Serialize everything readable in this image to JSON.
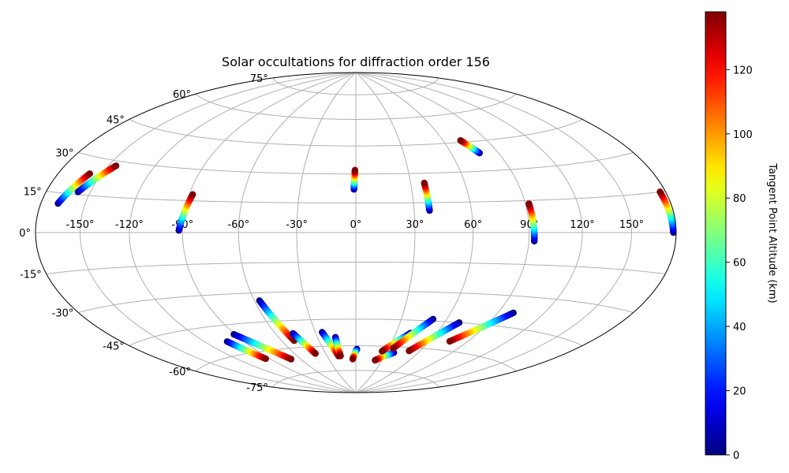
{
  "chart_data": {
    "type": "scatter",
    "projection": "hammer",
    "title": "Solar occultations for diffraction order 156",
    "grid": true,
    "longitude_ticks": [
      "-150°",
      "-120°",
      "-90°",
      "-60°",
      "-30°",
      "0°",
      "30°",
      "60°",
      "90°",
      "120°",
      "150°"
    ],
    "longitude_tick_values": [
      -150,
      -120,
      -90,
      -60,
      -30,
      0,
      30,
      60,
      90,
      120,
      150
    ],
    "latitude_ticks": [
      "75°",
      "60°",
      "45°",
      "30°",
      "15°",
      "0°",
      "-15°",
      "-30°",
      "-45°",
      "-60°",
      "-75°"
    ],
    "latitude_tick_values": [
      75,
      60,
      45,
      30,
      15,
      0,
      -15,
      -30,
      -45,
      -60,
      -75
    ],
    "colorbar": {
      "label": "Tangent Point Altitude (km)",
      "range": [
        0,
        138
      ],
      "colormap": "jet",
      "ticks": [
        "0",
        "20",
        "40",
        "60",
        "80",
        "100",
        "120"
      ],
      "tick_values": [
        0,
        20,
        40,
        60,
        80,
        100,
        120
      ]
    },
    "xlim": [
      -180,
      180
    ],
    "ylim": [
      -90,
      90
    ],
    "tracks": [
      {
        "start": [
          -168.0,
          11.0
        ],
        "end": [
          -158.0,
          23.5
        ]
      },
      {
        "start": [
          -158.0,
          16.0
        ],
        "end": [
          -145.0,
          28.0
        ]
      },
      {
        "start": [
          -92.0,
          1.0
        ],
        "end": [
          -88.0,
          18.0
        ]
      },
      {
        "start": [
          -1.0,
          22.0
        ],
        "end": [
          -0.5,
          32.0
        ]
      },
      {
        "start": [
          38.0,
          11.0
        ],
        "end": [
          37.5,
          25.0
        ]
      },
      {
        "start": [
          78.0,
          39.0
        ],
        "end": [
          72.0,
          46.0
        ]
      },
      {
        "start": [
          93.0,
          -4.0
        ],
        "end": [
          92.0,
          13.5
        ]
      },
      {
        "start": [
          178.0,
          0.0
        ],
        "end": [
          176.0,
          15.0
        ]
      },
      {
        "start": [
          -103.0,
          -53.0
        ],
        "end": [
          -94.0,
          -64.0
        ]
      },
      {
        "start": [
          -91.0,
          -50.0
        ],
        "end": [
          -70.0,
          -66.0
        ]
      },
      {
        "start": [
          -57.0,
          -34.0
        ],
        "end": [
          -50.0,
          -56.0
        ]
      },
      {
        "start": [
          -47.0,
          -52.0
        ],
        "end": [
          -40.0,
          -64.0
        ]
      },
      {
        "start": [
          -25.0,
          -52.0
        ],
        "end": [
          -18.0,
          -66.0
        ]
      },
      {
        "start": [
          -16.0,
          -55.0
        ],
        "end": [
          -16.0,
          -66.0
        ]
      },
      {
        "start": [
          1.0,
          -62.0
        ],
        "end": [
          -3.5,
          -68.0
        ]
      },
      {
        "start": [
          37.0,
          -63.5
        ],
        "end": [
          22.0,
          -68.5
        ]
      },
      {
        "start": [
          41.0,
          -52.0
        ],
        "end": [
          25.0,
          -63.0
        ]
      },
      {
        "start": [
          51.0,
          -44.0
        ],
        "end": [
          34.0,
          -61.0
        ]
      },
      {
        "start": [
          70.0,
          -45.0
        ],
        "end": [
          50.0,
          -62.0
        ]
      },
      {
        "start": [
          100.0,
          -38.0
        ],
        "end": [
          76.0,
          -55.0
        ]
      }
    ]
  }
}
